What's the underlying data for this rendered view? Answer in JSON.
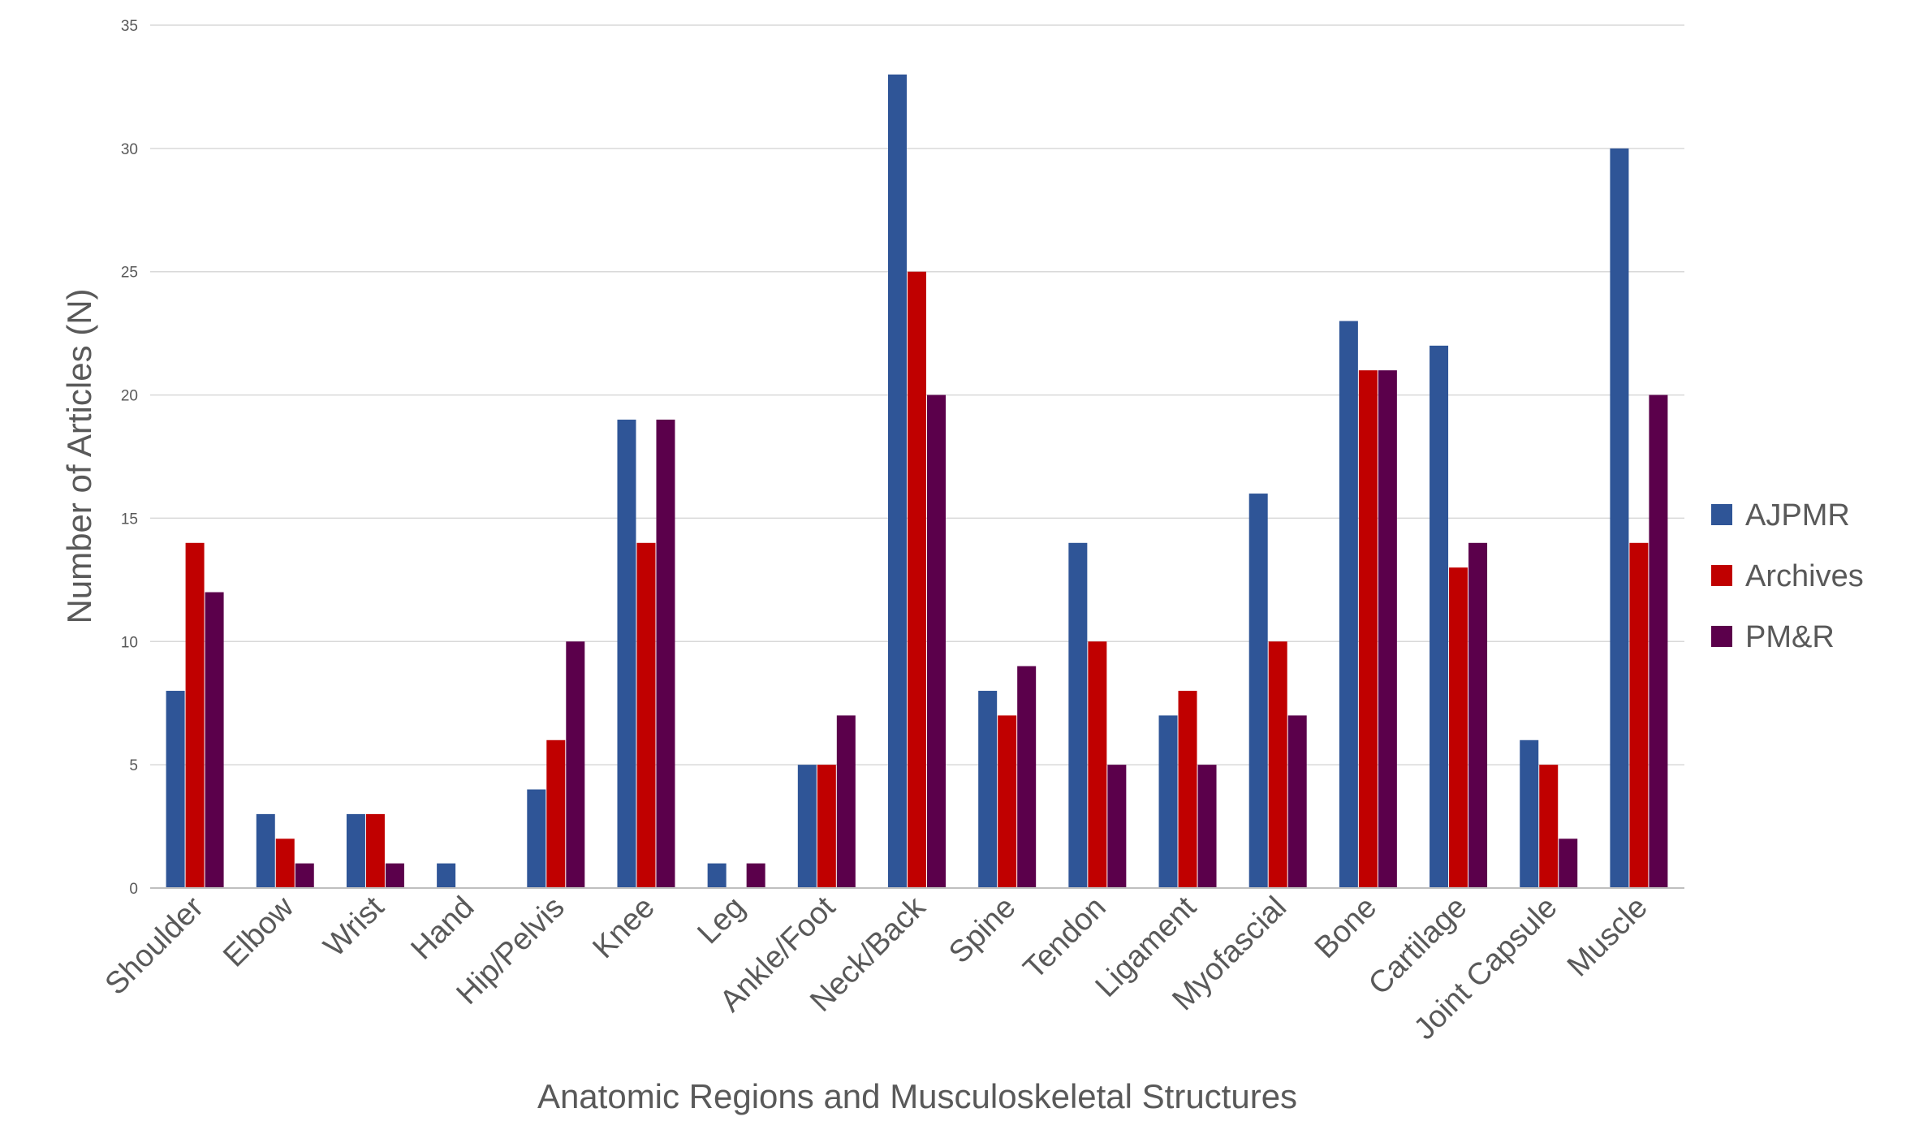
{
  "chart_data": {
    "type": "bar",
    "xlabel": "Anatomic Regions and Musculoskeletal Structures",
    "ylabel": "Number of Articles (N)",
    "ylim": [
      0,
      35
    ],
    "yticks": [
      0,
      5,
      10,
      15,
      20,
      25,
      30,
      35
    ],
    "grid": true,
    "legend_position": "right",
    "categories": [
      "Shoulder",
      "Elbow",
      "Wrist",
      "Hand",
      "Hip/Pelvis",
      "Knee",
      "Leg",
      "Ankle/Foot",
      "Neck/Back",
      "Spine",
      "Tendon",
      "Ligament",
      "Myofascial",
      "Bone",
      "Cartilage",
      "Joint Capsule",
      "Muscle"
    ],
    "series": [
      {
        "name": "AJPMR",
        "color": "#2F5597",
        "values": [
          8,
          3,
          3,
          1,
          4,
          19,
          1,
          5,
          33,
          8,
          14,
          7,
          16,
          23,
          22,
          6,
          30
        ]
      },
      {
        "name": "Archives",
        "color": "#C00000",
        "values": [
          14,
          2,
          3,
          0,
          6,
          14,
          0,
          5,
          25,
          7,
          10,
          8,
          10,
          21,
          13,
          5,
          14
        ]
      },
      {
        "name": "PM&R",
        "color": "#5B004B",
        "values": [
          12,
          1,
          1,
          0,
          10,
          19,
          1,
          7,
          20,
          9,
          5,
          5,
          7,
          21,
          14,
          2,
          20
        ]
      }
    ]
  }
}
